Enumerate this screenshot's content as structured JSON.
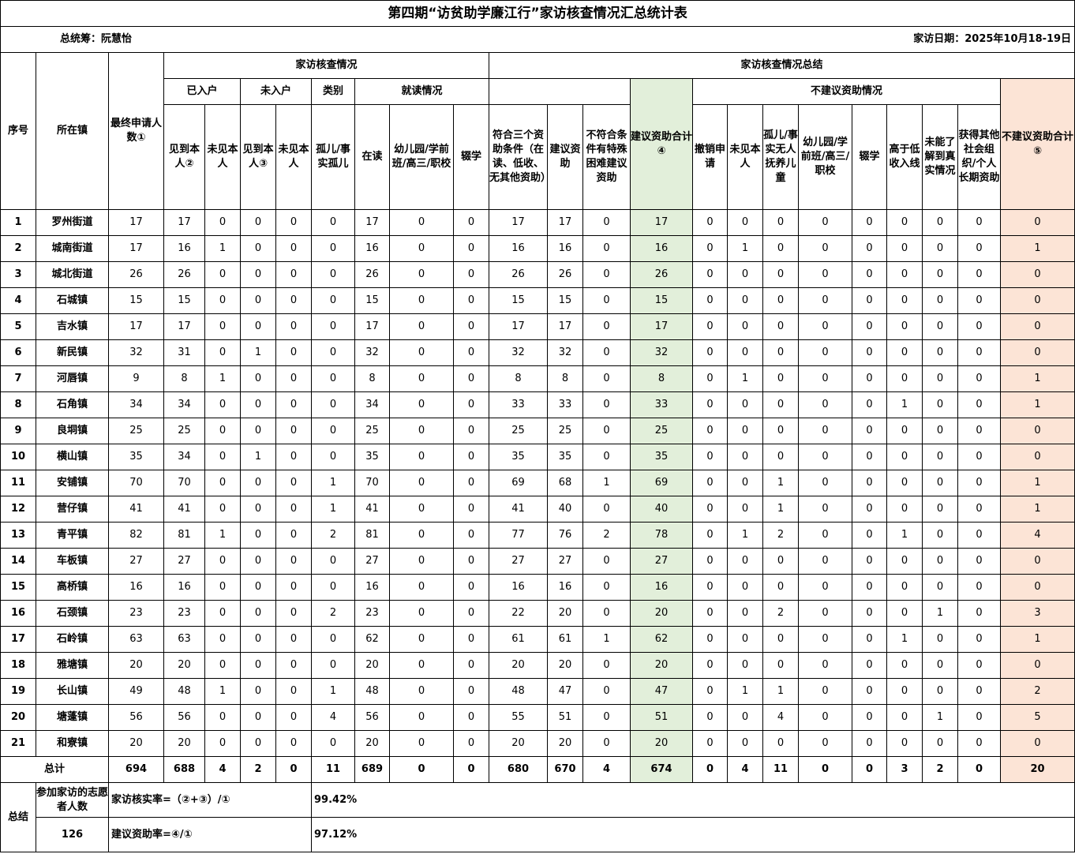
{
  "title": "第四期“访贫助学廉江行”家访核查情况汇总统计表",
  "coordinator": "总统筹：阮慧怡",
  "visit_date": "家访日期：2025年10月18-19日",
  "header": {
    "seq": "序号",
    "town": "所在镇",
    "final_applicants": "最终申请人数①",
    "group_check": "家访核查情况",
    "group_summary": "家访核查情况总结",
    "entered": "已入户",
    "not_entered": "未入户",
    "category": "类别",
    "schooling": "就读情况",
    "suggest_total": "建议资助合计④",
    "not_suggest_group": "不建议资助情况",
    "not_suggest_total": "不建议资助合计⑤",
    "seen_self_2": "见到本人②",
    "unseen_self_a": "未见本人",
    "seen_self_3": "见到本人③",
    "unseen_self_b": "未见本人",
    "orphan": "孤儿/事实孤儿",
    "in_school": "在读",
    "kinder_a": "幼儿园/学前班/高三/职校",
    "dropout_a": "辍学",
    "meets_three": "符合三个资助条件（在读、低收、无其他资助）",
    "suggest": "建议资助",
    "special": "不符合条件有特殊困难建议资助",
    "withdraw": "撤销申请",
    "unseen_self_c": "未见本人",
    "orphan_b": "孤儿/事实无人抚养儿童",
    "kinder_b": "幼儿园/学前班/高三/职校",
    "dropout_b": "辍学",
    "above_low": "高于低收入线",
    "unknown": "未能了解到真实情况",
    "other_aid": "获得其他社会组织/个人长期资助"
  },
  "rows": [
    [
      "1",
      "罗州街道",
      "17",
      "17",
      "0",
      "0",
      "0",
      "0",
      "17",
      "0",
      "0",
      "17",
      "17",
      "0",
      "17",
      "0",
      "0",
      "0",
      "0",
      "0",
      "0",
      "0",
      "0",
      "0"
    ],
    [
      "2",
      "城南街道",
      "17",
      "16",
      "1",
      "0",
      "0",
      "0",
      "16",
      "0",
      "0",
      "16",
      "16",
      "0",
      "16",
      "0",
      "1",
      "0",
      "0",
      "0",
      "0",
      "0",
      "0",
      "1"
    ],
    [
      "3",
      "城北街道",
      "26",
      "26",
      "0",
      "0",
      "0",
      "0",
      "26",
      "0",
      "0",
      "26",
      "26",
      "0",
      "26",
      "0",
      "0",
      "0",
      "0",
      "0",
      "0",
      "0",
      "0",
      "0"
    ],
    [
      "4",
      "石城镇",
      "15",
      "15",
      "0",
      "0",
      "0",
      "0",
      "15",
      "0",
      "0",
      "15",
      "15",
      "0",
      "15",
      "0",
      "0",
      "0",
      "0",
      "0",
      "0",
      "0",
      "0",
      "0"
    ],
    [
      "5",
      "吉水镇",
      "17",
      "17",
      "0",
      "0",
      "0",
      "0",
      "17",
      "0",
      "0",
      "17",
      "17",
      "0",
      "17",
      "0",
      "0",
      "0",
      "0",
      "0",
      "0",
      "0",
      "0",
      "0"
    ],
    [
      "6",
      "新民镇",
      "32",
      "31",
      "0",
      "1",
      "0",
      "0",
      "32",
      "0",
      "0",
      "32",
      "32",
      "0",
      "32",
      "0",
      "0",
      "0",
      "0",
      "0",
      "0",
      "0",
      "0",
      "0"
    ],
    [
      "7",
      "河唇镇",
      "9",
      "8",
      "1",
      "0",
      "0",
      "0",
      "8",
      "0",
      "0",
      "8",
      "8",
      "0",
      "8",
      "0",
      "1",
      "0",
      "0",
      "0",
      "0",
      "0",
      "0",
      "1"
    ],
    [
      "8",
      "石角镇",
      "34",
      "34",
      "0",
      "0",
      "0",
      "0",
      "34",
      "0",
      "0",
      "33",
      "33",
      "0",
      "33",
      "0",
      "0",
      "0",
      "0",
      "0",
      "1",
      "0",
      "0",
      "1"
    ],
    [
      "9",
      "良垌镇",
      "25",
      "25",
      "0",
      "0",
      "0",
      "0",
      "25",
      "0",
      "0",
      "25",
      "25",
      "0",
      "25",
      "0",
      "0",
      "0",
      "0",
      "0",
      "0",
      "0",
      "0",
      "0"
    ],
    [
      "10",
      "横山镇",
      "35",
      "34",
      "0",
      "1",
      "0",
      "0",
      "35",
      "0",
      "0",
      "35",
      "35",
      "0",
      "35",
      "0",
      "0",
      "0",
      "0",
      "0",
      "0",
      "0",
      "0",
      "0"
    ],
    [
      "11",
      "安铺镇",
      "70",
      "70",
      "0",
      "0",
      "0",
      "1",
      "70",
      "0",
      "0",
      "69",
      "68",
      "1",
      "69",
      "0",
      "0",
      "1",
      "0",
      "0",
      "0",
      "0",
      "0",
      "1"
    ],
    [
      "12",
      "营仔镇",
      "41",
      "41",
      "0",
      "0",
      "0",
      "1",
      "41",
      "0",
      "0",
      "41",
      "40",
      "0",
      "40",
      "0",
      "0",
      "1",
      "0",
      "0",
      "0",
      "0",
      "0",
      "1"
    ],
    [
      "13",
      "青平镇",
      "82",
      "81",
      "1",
      "0",
      "0",
      "2",
      "81",
      "0",
      "0",
      "77",
      "76",
      "2",
      "78",
      "0",
      "1",
      "2",
      "0",
      "0",
      "1",
      "0",
      "0",
      "4"
    ],
    [
      "14",
      "车板镇",
      "27",
      "27",
      "0",
      "0",
      "0",
      "0",
      "27",
      "0",
      "0",
      "27",
      "27",
      "0",
      "27",
      "0",
      "0",
      "0",
      "0",
      "0",
      "0",
      "0",
      "0",
      "0"
    ],
    [
      "15",
      "高桥镇",
      "16",
      "16",
      "0",
      "0",
      "0",
      "0",
      "16",
      "0",
      "0",
      "16",
      "16",
      "0",
      "16",
      "0",
      "0",
      "0",
      "0",
      "0",
      "0",
      "0",
      "0",
      "0"
    ],
    [
      "16",
      "石颈镇",
      "23",
      "23",
      "0",
      "0",
      "0",
      "2",
      "23",
      "0",
      "0",
      "22",
      "20",
      "0",
      "20",
      "0",
      "0",
      "2",
      "0",
      "0",
      "0",
      "1",
      "0",
      "3"
    ],
    [
      "17",
      "石岭镇",
      "63",
      "63",
      "0",
      "0",
      "0",
      "0",
      "62",
      "0",
      "0",
      "61",
      "61",
      "1",
      "62",
      "0",
      "0",
      "0",
      "0",
      "0",
      "1",
      "0",
      "0",
      "1"
    ],
    [
      "18",
      "雅塘镇",
      "20",
      "20",
      "0",
      "0",
      "0",
      "0",
      "20",
      "0",
      "0",
      "20",
      "20",
      "0",
      "20",
      "0",
      "0",
      "0",
      "0",
      "0",
      "0",
      "0",
      "0",
      "0"
    ],
    [
      "19",
      "长山镇",
      "49",
      "48",
      "1",
      "0",
      "0",
      "1",
      "48",
      "0",
      "0",
      "48",
      "47",
      "0",
      "47",
      "0",
      "1",
      "1",
      "0",
      "0",
      "0",
      "0",
      "0",
      "2"
    ],
    [
      "20",
      "塘蓬镇",
      "56",
      "56",
      "0",
      "0",
      "0",
      "4",
      "56",
      "0",
      "0",
      "55",
      "51",
      "0",
      "51",
      "0",
      "0",
      "4",
      "0",
      "0",
      "0",
      "1",
      "0",
      "5"
    ],
    [
      "21",
      "和寮镇",
      "20",
      "20",
      "0",
      "0",
      "0",
      "0",
      "20",
      "0",
      "0",
      "20",
      "20",
      "0",
      "20",
      "0",
      "0",
      "0",
      "0",
      "0",
      "0",
      "0",
      "0",
      "0"
    ]
  ],
  "total": {
    "label": "总计",
    "values": [
      "694",
      "688",
      "4",
      "2",
      "0",
      "11",
      "689",
      "0",
      "0",
      "680",
      "670",
      "4",
      "674",
      "0",
      "4",
      "11",
      "0",
      "0",
      "3",
      "2",
      "0",
      "20"
    ]
  },
  "summary": {
    "label": "总结",
    "volunteers_label": "参加家访的志愿者人数",
    "volunteers": "126",
    "verify_rate_label": "家访核实率=（②+③）/①",
    "verify_rate": "99.42%",
    "suggest_rate_label": "建议资助率=④/①",
    "suggest_rate": "97.12%"
  },
  "colors": {
    "suggest_total_bg": "#e2efda",
    "not_suggest_total_bg": "#fce4d6"
  }
}
